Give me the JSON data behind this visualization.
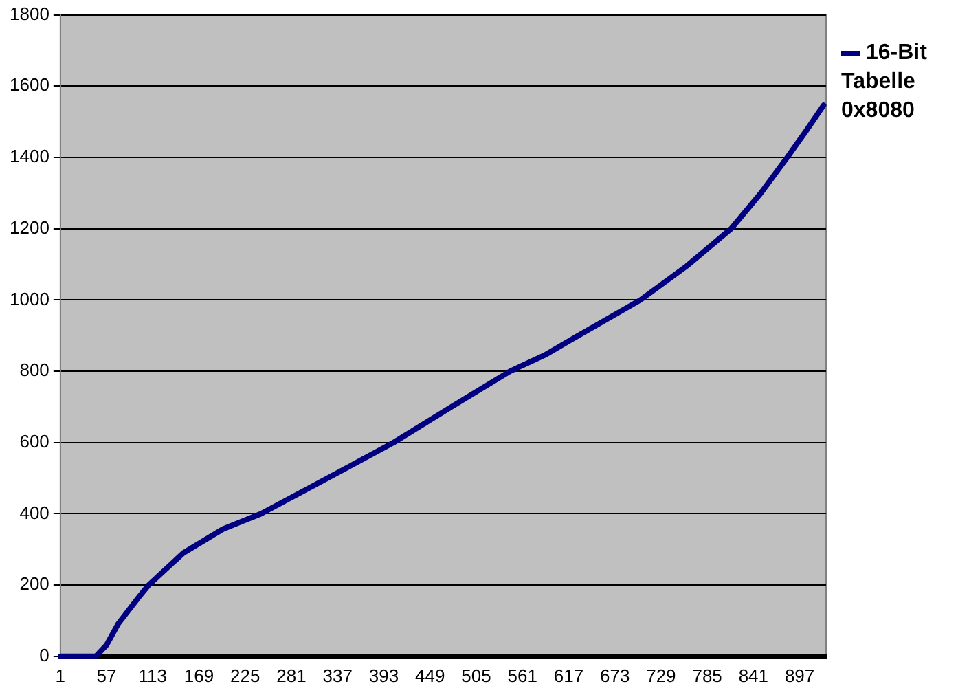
{
  "chart_data": {
    "type": "line",
    "x": [
      1,
      44,
      57,
      71,
      96,
      108,
      150,
      198,
      244,
      325,
      405,
      475,
      546,
      588,
      625,
      704,
      760,
      814,
      850,
      882,
      905,
      926
    ],
    "series": [
      {
        "name": "16-Bit Tabelle 0x8080",
        "color": "#000080",
        "values": [
          0,
          0,
          32,
          91,
          166,
          200,
          290,
          357,
          400,
          500,
          600,
          700,
          800,
          845,
          895,
          1000,
          1095,
          1200,
          1300,
          1400,
          1475,
          1546
        ]
      }
    ],
    "xlim": [
      1,
      929
    ],
    "xticks": [
      1,
      57,
      113,
      169,
      225,
      281,
      337,
      393,
      449,
      505,
      561,
      617,
      673,
      729,
      785,
      841,
      897
    ],
    "ylim": [
      0,
      1800
    ],
    "yticks": [
      0,
      200,
      400,
      600,
      800,
      1000,
      1200,
      1400,
      1600,
      1800
    ],
    "grid": "y",
    "legend": "right",
    "marker": "none",
    "line_style": "solid"
  }
}
